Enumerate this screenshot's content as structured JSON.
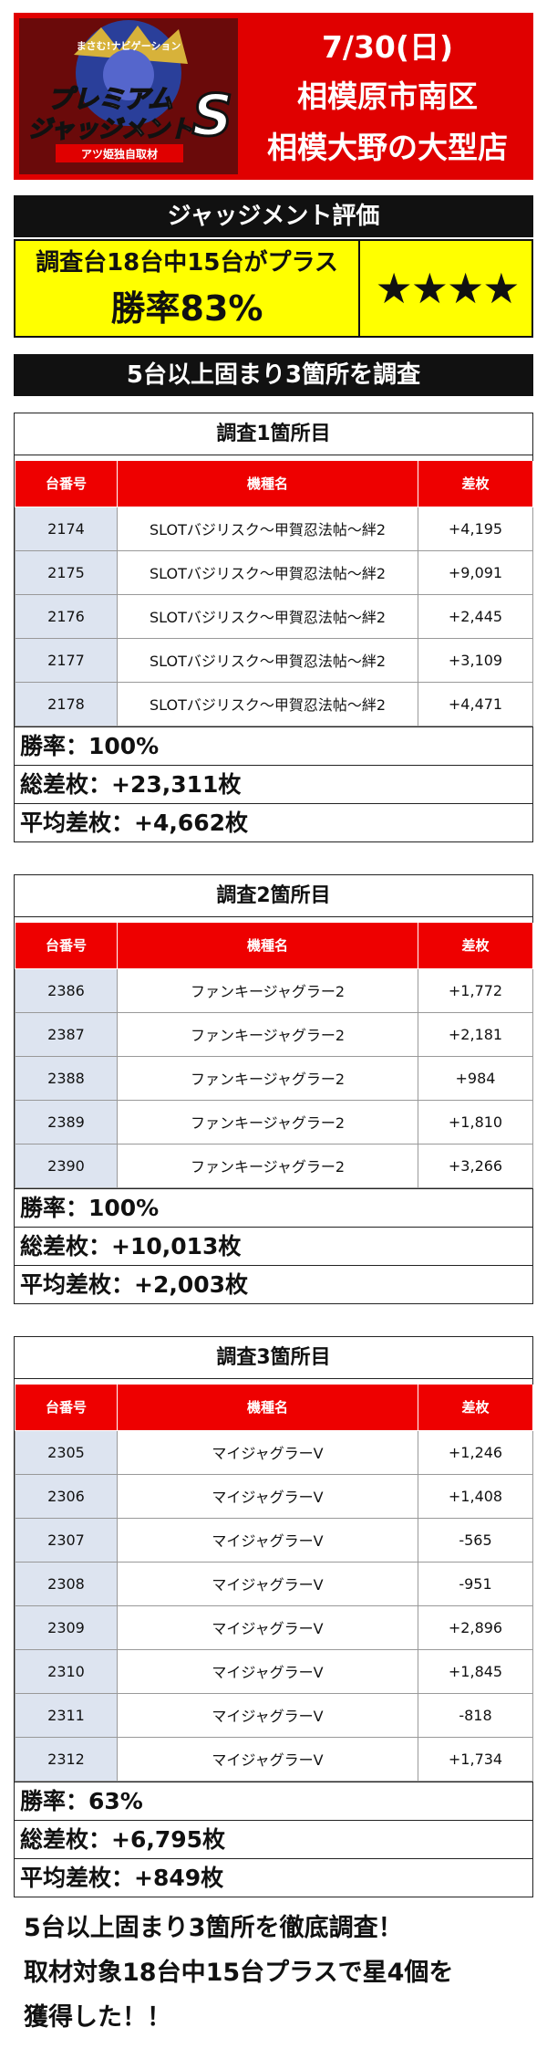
{
  "header": {
    "logo": {
      "tagline": "まさむ!ナビゲーション",
      "title_line1": "プレミアム",
      "title_line2": "ジャッジメント",
      "emblem": "S",
      "subtitle": "アツ姫独自取材"
    },
    "date": "7/30(日)",
    "area": "相模原市南区",
    "store": "相模大野の大型店"
  },
  "judgment": {
    "heading": "ジャッジメント評価",
    "summary": "調査台18台中15台がプラス",
    "win_rate": "勝率83%",
    "stars": "★★★★"
  },
  "survey_heading": "5台以上固まり3箇所を調査",
  "columns": {
    "number": "台番号",
    "model": "機種名",
    "diff": "差枚"
  },
  "sections": [
    {
      "title": "調査1箇所目",
      "rows": [
        {
          "number": "2174",
          "model": "SLOTバジリスク～甲賀忍法帖～絆2",
          "diff": "+4,195"
        },
        {
          "number": "2175",
          "model": "SLOTバジリスク～甲賀忍法帖～絆2",
          "diff": "+9,091"
        },
        {
          "number": "2176",
          "model": "SLOTバジリスク～甲賀忍法帖～絆2",
          "diff": "+2,445"
        },
        {
          "number": "2177",
          "model": "SLOTバジリスク～甲賀忍法帖～絆2",
          "diff": "+3,109"
        },
        {
          "number": "2178",
          "model": "SLOTバジリスク～甲賀忍法帖～絆2",
          "diff": "+4,471"
        }
      ],
      "win_rate": "勝率：100%",
      "total": "総差枚：+23,311枚",
      "average": "平均差枚：+4,662枚"
    },
    {
      "title": "調査2箇所目",
      "rows": [
        {
          "number": "2386",
          "model": "ファンキージャグラー2",
          "diff": "+1,772"
        },
        {
          "number": "2387",
          "model": "ファンキージャグラー2",
          "diff": "+2,181"
        },
        {
          "number": "2388",
          "model": "ファンキージャグラー2",
          "diff": "+984"
        },
        {
          "number": "2389",
          "model": "ファンキージャグラー2",
          "diff": "+1,810"
        },
        {
          "number": "2390",
          "model": "ファンキージャグラー2",
          "diff": "+3,266"
        }
      ],
      "win_rate": "勝率：100%",
      "total": "総差枚：+10,013枚",
      "average": "平均差枚：+2,003枚"
    },
    {
      "title": "調査3箇所目",
      "rows": [
        {
          "number": "2305",
          "model": "マイジャグラーV",
          "diff": "+1,246"
        },
        {
          "number": "2306",
          "model": "マイジャグラーV",
          "diff": "+1,408"
        },
        {
          "number": "2307",
          "model": "マイジャグラーV",
          "diff": "-565"
        },
        {
          "number": "2308",
          "model": "マイジャグラーV",
          "diff": "-951"
        },
        {
          "number": "2309",
          "model": "マイジャグラーV",
          "diff": "+2,896"
        },
        {
          "number": "2310",
          "model": "マイジャグラーV",
          "diff": "+1,845"
        },
        {
          "number": "2311",
          "model": "マイジャグラーV",
          "diff": "-818"
        },
        {
          "number": "2312",
          "model": "マイジャグラーV",
          "diff": "+1,734"
        }
      ],
      "win_rate": "勝率：63%",
      "total": "総差枚：+6,795枚",
      "average": "平均差枚：+849枚"
    }
  ],
  "footer": {
    "line1": "5台以上固まり3箇所を徹底調査！",
    "line2": "取材対象18台中15台プラスで星4個を",
    "line3": "獲得した！！"
  },
  "colors": {
    "brand_red": "#e00000",
    "header_red": "#ee0000",
    "judgment_yellow": "#ffff00",
    "number_cell_blue": "#dde4f0"
  }
}
